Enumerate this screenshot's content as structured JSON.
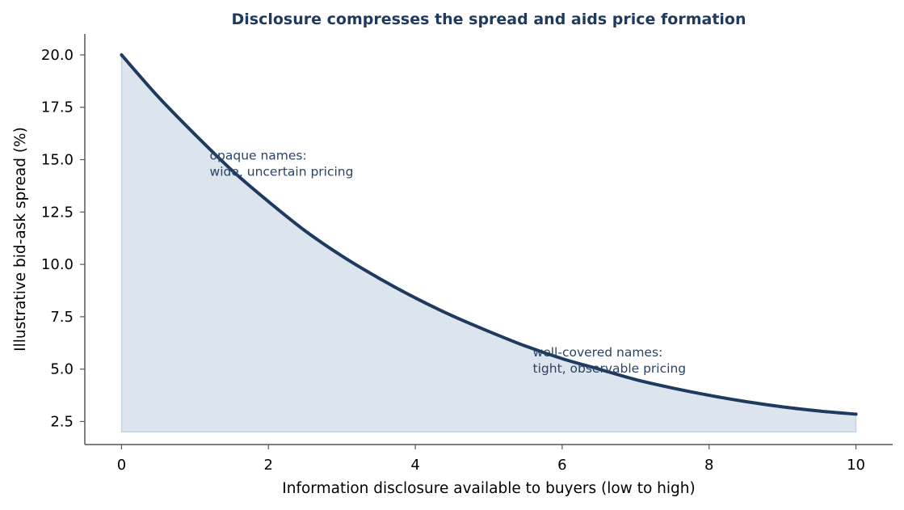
{
  "chart_data": {
    "type": "area",
    "title": "Disclosure compresses the spread and aids price formation",
    "xlabel": "Information disclosure available to buyers (low to high)",
    "ylabel": "Illustrative bid-ask spread (%)",
    "xlim": [
      -0.5,
      10.5
    ],
    "ylim": [
      1.4,
      21.0
    ],
    "x_ticks": [
      0,
      2,
      4,
      6,
      8,
      10
    ],
    "y_ticks": [
      2.5,
      5.0,
      7.5,
      10.0,
      12.5,
      15.0,
      17.5,
      20.0
    ],
    "x_tick_labels": [
      "0",
      "2",
      "4",
      "6",
      "8",
      "10"
    ],
    "y_tick_labels": [
      "2.5",
      "5.0",
      "7.5",
      "10.0",
      "12.5",
      "15.0",
      "17.5",
      "20.0"
    ],
    "fill_baseline": 2.0,
    "grid": false,
    "series": [
      {
        "x": [
          0,
          0.5,
          1,
          1.5,
          2,
          2.5,
          3,
          3.5,
          4,
          4.5,
          5,
          5.5,
          6,
          6.5,
          7,
          7.5,
          8,
          8.5,
          9,
          9.5,
          10
        ],
        "y": [
          20.0,
          18.0,
          16.2,
          14.5,
          13.0,
          11.6,
          10.4,
          9.35,
          8.4,
          7.55,
          6.8,
          6.1,
          5.5,
          5.0,
          4.5,
          4.1,
          3.75,
          3.45,
          3.2,
          3.0,
          2.85
        ]
      }
    ],
    "annotations": [
      {
        "x": 1.2,
        "y": 15.0,
        "lines": [
          "opaque names:",
          "wide, uncertain pricing"
        ]
      },
      {
        "x": 5.6,
        "y": 5.6,
        "lines": [
          "well-covered names:",
          "tight, observable pricing"
        ]
      }
    ]
  },
  "colors": {
    "line": "#1f3a5f",
    "fill": "#dce4ee",
    "fill_edge": "#c4d2e1",
    "title": "#1f3a5f",
    "annotation": "#2a4463",
    "axis": "#555555"
  }
}
